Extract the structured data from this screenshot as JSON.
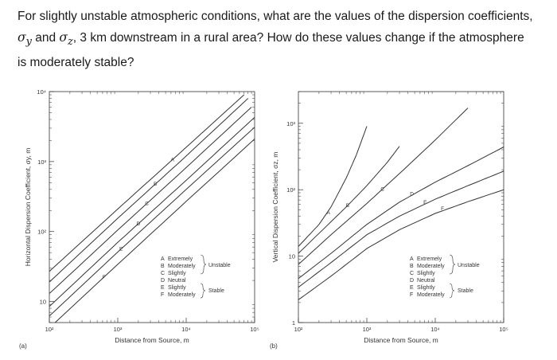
{
  "question": {
    "part1": "For slightly unstable atmospheric conditions, what are the values of the dispersion coefficients,",
    "sigma_y": "σ",
    "sub_y": "y",
    "and": " and ",
    "sigma_z": "σ",
    "sub_z": "z",
    "part2": ", 3 km downstream in a rural area? How do these values change if the atmosphere",
    "part3": "is moderately stable?"
  },
  "chart_data": [
    {
      "id": "a",
      "type": "line",
      "panel_label": "(a)",
      "xlabel": "Distance from Source, m",
      "ylabel": "Horizontal Dispersion Coefficient, σy, m",
      "xscale": "log",
      "yscale": "log",
      "xlim": [
        100,
        100000
      ],
      "ylim": [
        5,
        10000
      ],
      "x_ticks": [
        {
          "value": 100,
          "label": "10²"
        },
        {
          "value": 1000,
          "label": "10³"
        },
        {
          "value": 10000,
          "label": "10⁴"
        },
        {
          "value": 100000,
          "label": "10⁵"
        }
      ],
      "y_ticks": [
        {
          "value": 10,
          "label": "10"
        },
        {
          "value": 100,
          "label": "10²"
        },
        {
          "value": 1000,
          "label": "10³"
        },
        {
          "value": 10000,
          "label": "10⁴"
        }
      ],
      "series": [
        {
          "name": "A",
          "x": [
            100,
            1000,
            10000,
            70000
          ],
          "y": [
            27,
            210,
            1600,
            9000
          ]
        },
        {
          "name": "B",
          "x": [
            100,
            1000,
            10000,
            80000
          ],
          "y": [
            19,
            155,
            1200,
            8000
          ]
        },
        {
          "name": "C",
          "x": [
            100,
            1000,
            10000,
            90000
          ],
          "y": [
            13,
            105,
            820,
            6000
          ]
        },
        {
          "name": "D",
          "x": [
            100,
            1000,
            10000,
            100000
          ],
          "y": [
            8.5,
            70,
            540,
            4300
          ]
        },
        {
          "name": "E",
          "x": [
            100,
            1000,
            10000,
            100000
          ],
          "y": [
            6.2,
            51,
            400,
            3100
          ]
        },
        {
          "name": "F",
          "x": [
            100,
            1000,
            10000,
            100000
          ],
          "y": [
            4.2,
            34,
            270,
            2100
          ]
        }
      ],
      "legend": {
        "placement": "lower-right",
        "rows": [
          {
            "letter": "A",
            "text": "Extremely"
          },
          {
            "letter": "B",
            "text": "Moderately"
          },
          {
            "letter": "C",
            "text": "Slightly"
          },
          {
            "letter": "D",
            "text": "Neutral"
          },
          {
            "letter": "E",
            "text": "Slightly"
          },
          {
            "letter": "F",
            "text": "Moderately"
          }
        ],
        "unstable": "Unstable",
        "stable": "Stable"
      }
    },
    {
      "id": "b",
      "type": "line",
      "panel_label": "(b)",
      "xlabel": "Distance from Source, m",
      "ylabel": "Vertical Dispersion Coefficient, σz, m",
      "xscale": "log",
      "yscale": "log",
      "xlim": [
        100,
        100000
      ],
      "ylim": [
        1,
        3000
      ],
      "x_ticks": [
        {
          "value": 100,
          "label": "10²"
        },
        {
          "value": 1000,
          "label": "10³"
        },
        {
          "value": 10000,
          "label": "10⁴"
        },
        {
          "value": 100000,
          "label": "10⁵"
        }
      ],
      "y_ticks": [
        {
          "value": 1,
          "label": "1"
        },
        {
          "value": 10,
          "label": "10"
        },
        {
          "value": 100,
          "label": "10²"
        },
        {
          "value": 1000,
          "label": "10³"
        }
      ],
      "series": [
        {
          "name": "A",
          "x": [
            100,
            200,
            300,
            500,
            700,
            1000
          ],
          "y": [
            14,
            30,
            55,
            150,
            330,
            900
          ]
        },
        {
          "name": "B",
          "x": [
            100,
            300,
            500,
            1000,
            2000,
            3000
          ],
          "y": [
            11,
            33,
            55,
            115,
            260,
            450
          ]
        },
        {
          "name": "C",
          "x": [
            100,
            300,
            1000,
            3000,
            10000,
            30000
          ],
          "y": [
            7.5,
            21,
            62,
            175,
            560,
            1700
          ]
        },
        {
          "name": "D",
          "x": [
            100,
            300,
            1000,
            3000,
            10000,
            30000,
            100000
          ],
          "y": [
            4.6,
            11,
            30,
            65,
            130,
            230,
            440
          ]
        },
        {
          "name": "E",
          "x": [
            100,
            300,
            1000,
            3000,
            10000,
            30000,
            100000
          ],
          "y": [
            3.4,
            8,
            21,
            40,
            72,
            115,
            190
          ]
        },
        {
          "name": "F",
          "x": [
            100,
            300,
            1000,
            3000,
            10000,
            30000,
            100000
          ],
          "y": [
            2.2,
            5,
            13,
            25,
            44,
            66,
            100
          ]
        }
      ],
      "legend": {
        "placement": "lower-right",
        "rows": [
          {
            "letter": "A",
            "text": "Extremely"
          },
          {
            "letter": "B",
            "text": "Moderately"
          },
          {
            "letter": "C",
            "text": "Slightly"
          },
          {
            "letter": "D",
            "text": "Neutral"
          },
          {
            "letter": "E",
            "text": "Slightly"
          },
          {
            "letter": "F",
            "text": "Moderately"
          }
        ],
        "unstable": "Unstable",
        "stable": "Stable"
      }
    }
  ]
}
